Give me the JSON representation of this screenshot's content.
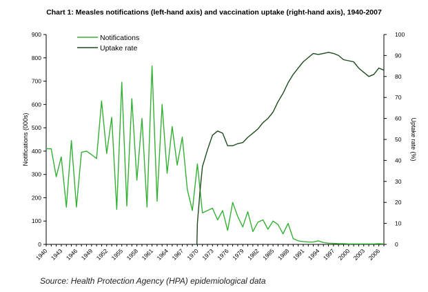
{
  "chart_data": {
    "type": "line",
    "title": "Chart 1: Measles notifications (left-hand axis) and vaccination uptake (right-hand axis), 1940-2007",
    "source": "Source: Health Protection Agency (HPA) epidemiological data",
    "ylabel_left": "Notifications (000s)",
    "ylabel_right": "Uptake rate (%)",
    "ylim_left": [
      0,
      900
    ],
    "ylim_right": [
      0,
      100
    ],
    "yticks_left": [
      0,
      100,
      200,
      300,
      400,
      500,
      600,
      700,
      800,
      900
    ],
    "yticks_right": [
      0,
      10,
      20,
      30,
      40,
      50,
      60,
      70,
      80,
      90,
      100
    ],
    "x_min": 1940,
    "x_max": 2007,
    "x_tick_labels": [
      "1940",
      "1943",
      "1946",
      "1949",
      "1952",
      "1955",
      "1958",
      "1961",
      "1964",
      "1967",
      "1970",
      "1973",
      "1976",
      "1979",
      "1982",
      "1985",
      "1988",
      "1991",
      "1994",
      "1997",
      "2000",
      "2003",
      "2006"
    ],
    "legend": [
      "Notifications",
      "Uptake rate"
    ],
    "colors": {
      "notifications": "#33b033",
      "uptake": "#1c4a1c",
      "axis": "#000000"
    },
    "series": [
      {
        "name": "Notifications",
        "axis": "left",
        "x": [
          1940,
          1941,
          1942,
          1943,
          1944,
          1945,
          1946,
          1947,
          1948,
          1949,
          1950,
          1951,
          1952,
          1953,
          1954,
          1955,
          1956,
          1957,
          1958,
          1959,
          1960,
          1961,
          1962,
          1963,
          1964,
          1965,
          1966,
          1967,
          1968,
          1969,
          1970,
          1971,
          1972,
          1973,
          1974,
          1975,
          1976,
          1977,
          1978,
          1979,
          1980,
          1981,
          1982,
          1983,
          1984,
          1985,
          1986,
          1987,
          1988,
          1989,
          1990,
          1991,
          1992,
          1993,
          1994,
          1995,
          1996,
          1997,
          1998,
          1999,
          2000,
          2001,
          2002,
          2003,
          2004,
          2005,
          2006,
          2007
        ],
        "values": [
          410,
          410,
          290,
          375,
          160,
          445,
          160,
          395,
          400,
          385,
          368,
          615,
          390,
          545,
          150,
          695,
          165,
          625,
          275,
          540,
          160,
          765,
          185,
          600,
          305,
          505,
          340,
          460,
          235,
          145,
          345,
          135,
          145,
          155,
          105,
          145,
          60,
          180,
          120,
          75,
          140,
          55,
          95,
          105,
          65,
          100,
          85,
          45,
          90,
          25,
          15,
          12,
          10,
          10,
          15,
          8,
          5,
          4,
          3,
          3,
          2,
          2,
          2,
          2,
          2,
          2,
          3,
          2
        ]
      },
      {
        "name": "Uptake rate",
        "axis": "right",
        "x": [
          1969.9,
          1970,
          1970.5,
          1971,
          1972,
          1973,
          1974,
          1975,
          1976,
          1977,
          1978,
          1979,
          1980,
          1981,
          1982,
          1983,
          1984,
          1985,
          1986,
          1987,
          1988,
          1989,
          1990,
          1991,
          1992,
          1993,
          1994,
          1995,
          1996,
          1997,
          1998,
          1999,
          2000,
          2001,
          2002,
          2003,
          2004,
          2005,
          2006,
          2007
        ],
        "values": [
          0,
          10,
          25,
          37,
          45,
          52,
          54,
          53,
          47,
          47,
          48,
          48.5,
          51,
          53,
          55,
          58,
          60,
          63,
          68,
          72,
          77,
          81,
          84,
          87,
          89,
          91,
          90.5,
          91,
          91.5,
          91,
          90,
          88,
          87.5,
          87,
          84,
          82,
          80,
          81,
          84,
          83
        ]
      }
    ]
  }
}
